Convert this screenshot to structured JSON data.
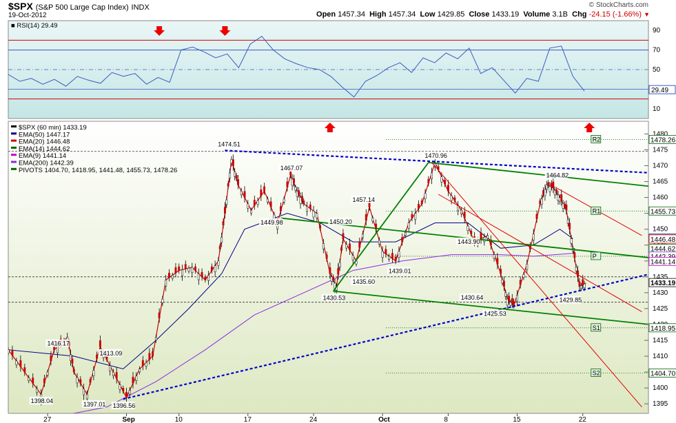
{
  "header": {
    "symbol": "$SPX",
    "description": "(S&P 500 Large Cap Index)",
    "exchange": "INDX",
    "date": "19-Oct-2012",
    "brand": "© StockCharts.com",
    "open_label": "Open",
    "open": "1457.34",
    "high_label": "High",
    "high": "1457.34",
    "low_label": "Low",
    "low": "1429.85",
    "close_label": "Close",
    "close": "1433.19",
    "volume_label": "Volume",
    "volume": "3.1B",
    "chg_label": "Chg",
    "chg": "-24.15 (-1.66%)",
    "chg_icon": "down-triangle-icon"
  },
  "chart_data": [
    {
      "type": "line",
      "panel": "rsi",
      "label": "RSI(14) 29.49",
      "current_value": "29.49",
      "ylim": [
        0,
        100
      ],
      "ticks": [
        10,
        30,
        50,
        70,
        90
      ],
      "overbought": 80,
      "oversold": 20,
      "x": [
        0,
        3,
        6,
        9,
        12,
        15,
        18,
        21,
        24,
        27,
        30,
        33,
        36,
        39,
        42,
        45,
        48,
        51,
        54,
        57,
        60,
        63,
        66,
        69,
        72,
        75,
        78,
        81,
        84,
        87,
        90,
        93,
        96,
        99,
        102,
        105,
        108,
        111,
        114,
        117,
        120,
        123,
        126,
        129,
        132,
        135,
        138,
        141,
        144,
        147,
        150
      ],
      "values": [
        45,
        38,
        41,
        35,
        40,
        33,
        43,
        39,
        36,
        47,
        43,
        46,
        35,
        42,
        37,
        70,
        73,
        68,
        62,
        66,
        52,
        76,
        84,
        70,
        61,
        56,
        52,
        50,
        43,
        32,
        22,
        38,
        44,
        52,
        57,
        47,
        62,
        57,
        67,
        61,
        72,
        46,
        52,
        39,
        26,
        41,
        38,
        72,
        74,
        43,
        28
      ],
      "annotations": [
        {
          "kind": "down-arrow",
          "x": 46
        },
        {
          "kind": "down-arrow",
          "x": 66
        },
        {
          "kind": "up-arrow",
          "x": 98
        },
        {
          "kind": "up-arrow",
          "x": 177
        }
      ]
    },
    {
      "type": "candlestick",
      "panel": "price",
      "label": "$SPX (60 min) 1433.19",
      "ylim": [
        1392,
        1484
      ],
      "ticks": [
        1395,
        1400,
        1405,
        1410,
        1415,
        1420,
        1425,
        1430,
        1435,
        1440,
        1445,
        1450,
        1455,
        1460,
        1465,
        1470,
        1475,
        1480
      ],
      "x_ticks": [
        {
          "label": "27",
          "pos": 12
        },
        {
          "label": "Sep",
          "pos": 36
        },
        {
          "label": "10",
          "pos": 52
        },
        {
          "label": "17",
          "pos": 73
        },
        {
          "label": "24",
          "pos": 93
        },
        {
          "label": "Oct",
          "pos": 114
        },
        {
          "label": "8",
          "pos": 134
        },
        {
          "label": "15",
          "pos": 155
        },
        {
          "label": "22",
          "pos": 175
        }
      ],
      "x_domain": [
        0,
        195
      ],
      "path_x": [
        0,
        5,
        10,
        14,
        18,
        20,
        24,
        28,
        32,
        36,
        40,
        44,
        48,
        52,
        56,
        60,
        64,
        66,
        68,
        70,
        74,
        78,
        82,
        86,
        88,
        90,
        94,
        98,
        100,
        102,
        106,
        110,
        114,
        118,
        122,
        126,
        130,
        134,
        138,
        142,
        146,
        150,
        152,
        154,
        158,
        162,
        164,
        166,
        168,
        170,
        172,
        174,
        176
      ],
      "path_close": [
        1412,
        1405,
        1398,
        1412,
        1416,
        1405,
        1398,
        1413,
        1405,
        1397,
        1406,
        1410,
        1434,
        1437,
        1438,
        1434,
        1440,
        1455,
        1472,
        1464,
        1456,
        1462,
        1452,
        1467,
        1462,
        1458,
        1455,
        1436,
        1432,
        1447,
        1440,
        1457,
        1443,
        1440,
        1452,
        1458,
        1471,
        1462,
        1456,
        1446,
        1448,
        1436,
        1428,
        1426,
        1439,
        1458,
        1464,
        1463,
        1460,
        1456,
        1444,
        1432,
        1433
      ],
      "legend": [
        {
          "name": "$SPX (60 min) 1433.19",
          "color": "#000000"
        },
        {
          "name": "EMA(50) 1447.17",
          "color": "#000080"
        },
        {
          "name": "EMA(20) 1446.48",
          "color": "#cc0000"
        },
        {
          "name": "EMA(14) 1444.62",
          "color": "#006400"
        },
        {
          "name": "EMA(9) 1441.14",
          "color": "#cc00cc"
        },
        {
          "name": "EMA(200) 1442.39",
          "color": "#8a2be2"
        },
        {
          "name": "PIVOTS 1404.70, 1418.95, 1441.48, 1455.73, 1478.26",
          "color": "#006400"
        }
      ],
      "pivots": [
        {
          "label": "R2",
          "value": 1478.26
        },
        {
          "label": "R1",
          "value": 1455.73
        },
        {
          "label": "P",
          "value": 1441.48
        },
        {
          "label": "S1",
          "value": 1418.95
        },
        {
          "label": "S2",
          "value": 1404.7
        }
      ],
      "right_labels": [
        "1478.26",
        "1455.73",
        "1447.17",
        "1446.48",
        "1444.62",
        "1442.39",
        "1441.14",
        "1433.19",
        "1418.95",
        "1404.70"
      ],
      "price_labels": [
        {
          "text": "1474.51",
          "x": 67,
          "y": 1474.51
        },
        {
          "text": "1467.07",
          "x": 86,
          "y": 1467.07
        },
        {
          "text": "1470.96",
          "x": 130,
          "y": 1470.96
        },
        {
          "text": "1464.82",
          "x": 167,
          "y": 1464.82
        },
        {
          "text": "1457.14",
          "x": 108,
          "y": 1457.14
        },
        {
          "text": "1450.20",
          "x": 101,
          "y": 1450.2
        },
        {
          "text": "1449.98",
          "x": 80,
          "y": 1449.98
        },
        {
          "text": "1443.90",
          "x": 140,
          "y": 1443.9
        },
        {
          "text": "1439.01",
          "x": 119,
          "y": 1439.01
        },
        {
          "text": "1435.60",
          "x": 108,
          "y": 1435.6
        },
        {
          "text": "1430.53",
          "x": 99,
          "y": 1430.53
        },
        {
          "text": "1430.64",
          "x": 141,
          "y": 1430.64
        },
        {
          "text": "1429.85",
          "x": 171,
          "y": 1429.85
        },
        {
          "text": "1425.53",
          "x": 148,
          "y": 1425.53
        },
        {
          "text": "1416.17",
          "x": 15,
          "y": 1416.17
        },
        {
          "text": "1413.09",
          "x": 31,
          "y": 1413.09
        },
        {
          "text": "1398.04",
          "x": 10,
          "y": 1398.04
        },
        {
          "text": "1397.01",
          "x": 26,
          "y": 1397.01
        },
        {
          "text": "1396.56",
          "x": 35,
          "y": 1396.56
        }
      ],
      "trendlines": [
        {
          "color": "#0000cc",
          "dashed": true,
          "from": [
            35,
            1396.5
          ],
          "to": [
            200,
            1437
          ]
        },
        {
          "color": "#0000cc",
          "dashed": true,
          "from": [
            66,
            1474.8
          ],
          "to": [
            200,
            1467.5
          ]
        },
        {
          "color": "#008000",
          "dashed": false,
          "from": [
            128,
            1471
          ],
          "to": [
            200,
            1463
          ]
        },
        {
          "color": "#008000",
          "dashed": false,
          "from": [
            83,
            1453.5
          ],
          "to": [
            200,
            1440.5
          ]
        },
        {
          "color": "#008000",
          "dashed": false,
          "from": [
            99,
            1430.5
          ],
          "to": [
            200,
            1419.5
          ]
        },
        {
          "color": "#008000",
          "dashed": false,
          "from": [
            99,
            1430.5
          ],
          "to": [
            128,
            1471
          ]
        },
        {
          "color": "#e00000",
          "dashed": false,
          "from": [
            129,
            1471
          ],
          "to": [
            193,
            1394
          ]
        },
        {
          "color": "#e00000",
          "dashed": false,
          "from": [
            131,
            1461
          ],
          "to": [
            193,
            1424
          ]
        },
        {
          "color": "#e00000",
          "dashed": false,
          "from": [
            167,
            1463
          ],
          "to": [
            193,
            1448
          ]
        }
      ]
    }
  ]
}
